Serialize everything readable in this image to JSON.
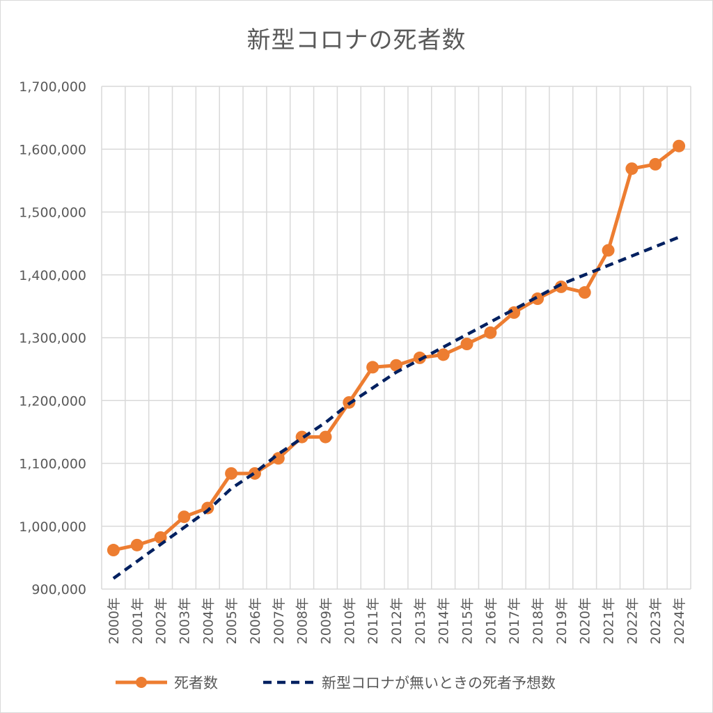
{
  "chart_data": {
    "type": "line",
    "title": "新型コロナの死者数",
    "categories": [
      "2000年",
      "2001年",
      "2002年",
      "2003年",
      "2004年",
      "2005年",
      "2006年",
      "2007年",
      "2008年",
      "2009年",
      "2010年",
      "2011年",
      "2012年",
      "2013年",
      "2014年",
      "2015年",
      "2016年",
      "2017年",
      "2018年",
      "2019年",
      "2020年",
      "2021年",
      "2022年",
      "2023年",
      "2024年"
    ],
    "ylim": [
      900000,
      1700000
    ],
    "yticks": [
      "900,000",
      "1,000,000",
      "1,100,000",
      "1,200,000",
      "1,300,000",
      "1,400,000",
      "1,500,000",
      "1,600,000",
      "1,700,000"
    ],
    "ytick_values": [
      900000,
      1000000,
      1100000,
      1200000,
      1300000,
      1400000,
      1500000,
      1600000,
      1700000
    ],
    "grid": true,
    "legend_position": "bottom",
    "series": [
      {
        "name": "死者数",
        "style": "solid-marker",
        "color": "#ED7D31",
        "values": [
          962000,
          970000,
          982000,
          1015000,
          1029000,
          1084000,
          1084000,
          1108000,
          1142000,
          1142000,
          1197000,
          1253000,
          1256000,
          1268000,
          1273000,
          1290000,
          1308000,
          1340000,
          1362000,
          1381000,
          1372000,
          1439000,
          1569000,
          1576000,
          1605000
        ]
      },
      {
        "name": "新型コロナが無いときの死者予想数",
        "style": "dashed",
        "color": "#002060",
        "values": [
          917000,
          944000,
          971000,
          998000,
          1025000,
          1060000,
          1085000,
          1115000,
          1140000,
          1165000,
          1195000,
          1220000,
          1245000,
          1265000,
          1285000,
          1305000,
          1325000,
          1345000,
          1365000,
          1385000,
          1400000,
          1415000,
          1430000,
          1445000,
          1460000
        ]
      }
    ]
  }
}
